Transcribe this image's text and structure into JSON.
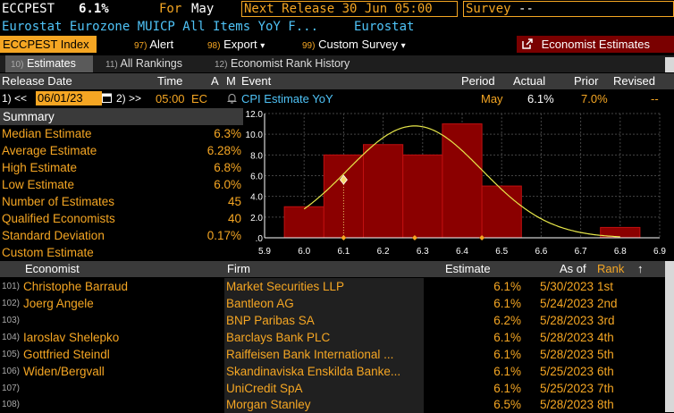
{
  "header": {
    "ticker": "ECCPEST",
    "value": "6.1%",
    "for_label": "For",
    "for_month": "May",
    "next_release": "Next Release 30 Jun 05:00",
    "survey_label": "Survey",
    "survey_value": "--",
    "subtitle": "Eurostat Eurozone MUICP All Items YoY F...",
    "source": "Eurostat"
  },
  "menu": {
    "index_label": "ECCPEST Index",
    "alert_num": "97)",
    "alert_label": "Alert",
    "export_num": "98)",
    "export_label": "Export",
    "custom_num": "99)",
    "custom_label": "Custom Survey",
    "economist_icon": "external-link-icon",
    "economist_label": "Economist Estimates",
    "dropdown_arrow": "▾"
  },
  "tabs": [
    {
      "num": "10)",
      "label": "Estimates"
    },
    {
      "num": "11)",
      "label": "All Rankings"
    },
    {
      "num": "12)",
      "label": "Economist Rank History"
    }
  ],
  "release": {
    "col_release_date": "Release Date",
    "col_time": "Time",
    "col_a": "A",
    "col_m": "M",
    "col_event": "Event",
    "col_period": "Period",
    "col_actual": "Actual",
    "col_prior": "Prior",
    "col_revised": "Revised",
    "prev_btn": "1) <<",
    "date_value": "06/01/23",
    "next_btn": "2) >>",
    "time_value": "05:00",
    "region": "EC",
    "event": "CPI Estimate YoY",
    "period": "May",
    "actual": "6.1%",
    "prior": "7.0%",
    "revised": "--"
  },
  "summary": {
    "title": "Summary",
    "rows": [
      {
        "label": "Median Estimate",
        "value": "6.3%"
      },
      {
        "label": "Average Estimate",
        "value": "6.28%"
      },
      {
        "label": "High Estimate",
        "value": "6.8%"
      },
      {
        "label": "Low Estimate",
        "value": "6.0%"
      },
      {
        "label": "Number of Estimates",
        "value": "45"
      },
      {
        "label": "Qualified Economists",
        "value": "40"
      },
      {
        "label": "Standard Deviation",
        "value": "0.17%"
      },
      {
        "label": "Custom Estimate",
        "value": ""
      }
    ]
  },
  "chart_data": {
    "type": "bar",
    "categories": [
      "6.0",
      "6.1",
      "6.2",
      "6.3",
      "6.4",
      "6.5",
      "6.6",
      "6.7",
      "6.8"
    ],
    "values": [
      3,
      8,
      9,
      8,
      11,
      5,
      0,
      0,
      1
    ],
    "bin_edges": [
      5.95,
      6.05,
      6.15,
      6.25,
      6.35,
      6.45,
      6.55,
      6.65,
      6.75,
      6.85
    ],
    "xticks": [
      "5.9",
      "6.0",
      "6.1",
      "6.2",
      "6.3",
      "6.4",
      "6.5",
      "6.6",
      "6.7",
      "6.8",
      "6.9"
    ],
    "xlim": [
      5.9,
      6.9
    ],
    "yticks": [
      ".0",
      "2.0",
      "4.0",
      "6.0",
      "8.0",
      "10.0",
      "12.0"
    ],
    "ylim": [
      0,
      12
    ],
    "curve": {
      "mean": 6.28,
      "sd": 0.17,
      "peak": 10.8
    },
    "actual_marker": 6.1,
    "marker_level": 5.6,
    "xaxis_markers": [
      6.1,
      6.28,
      6.45
    ],
    "grid": true,
    "bar_color": "#8b0000",
    "curve_color": "#e8e84a",
    "marker_color": "#f5d76e"
  },
  "table": {
    "col_economist": "Economist",
    "col_firm": "Firm",
    "col_estimate": "Estimate",
    "col_asof": "As of",
    "col_rank": "Rank",
    "sort_icon": "↑",
    "rows": [
      {
        "num": "101)",
        "economist": "Christophe Barraud",
        "firm": "Market Securities LLP",
        "estimate": "6.1%",
        "asof": "5/30/2023",
        "rank": "1st"
      },
      {
        "num": "102)",
        "economist": "Joerg Angele",
        "firm": "Bantleon AG",
        "estimate": "6.1%",
        "asof": "5/24/2023",
        "rank": "2nd"
      },
      {
        "num": "103)",
        "economist": "",
        "firm": "BNP Paribas SA",
        "estimate": "6.2%",
        "asof": "5/28/2023",
        "rank": "3rd"
      },
      {
        "num": "104)",
        "economist": "Iaroslav Shelepko",
        "firm": "Barclays Bank PLC",
        "estimate": "6.1%",
        "asof": "5/28/2023",
        "rank": "4th"
      },
      {
        "num": "105)",
        "economist": "Gottfried Steindl",
        "firm": "Raiffeisen Bank International ...",
        "estimate": "6.1%",
        "asof": "5/28/2023",
        "rank": "5th"
      },
      {
        "num": "106)",
        "economist": "Widen/Bergvall",
        "firm": "Skandinaviska Enskilda Banke...",
        "estimate": "6.1%",
        "asof": "5/25/2023",
        "rank": "6th"
      },
      {
        "num": "107)",
        "economist": "",
        "firm": "UniCredit SpA",
        "estimate": "6.1%",
        "asof": "5/25/2023",
        "rank": "7th"
      },
      {
        "num": "108)",
        "economist": "",
        "firm": "Morgan Stanley",
        "estimate": "6.5%",
        "asof": "5/28/2023",
        "rank": "8th"
      }
    ]
  }
}
